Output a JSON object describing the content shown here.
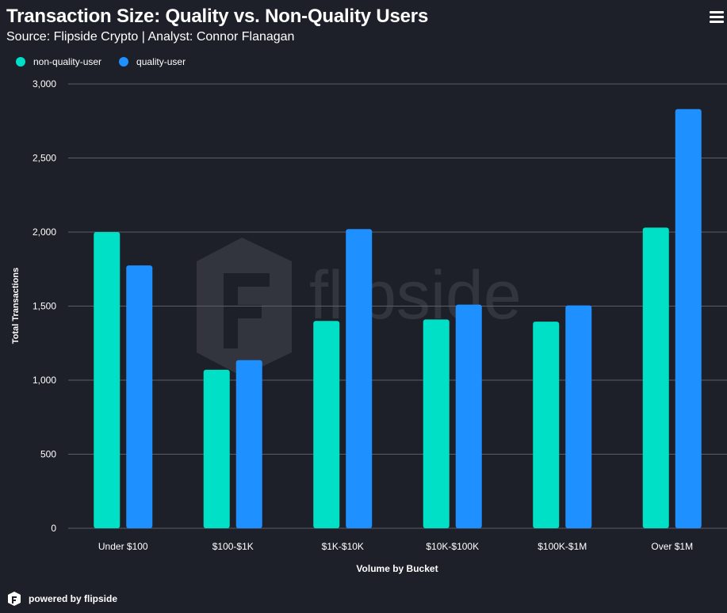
{
  "header": {
    "title": "Transaction Size: Quality vs. Non-Quality Users",
    "subtitle": "Source: Flipside Crypto | Analyst: Connor Flanagan"
  },
  "watermark": "flipside",
  "footer": {
    "label": "powered by flipside"
  },
  "colors": {
    "background": "#1e2029",
    "grid": "#5b5e68",
    "non_quality": "#00e0c6",
    "quality": "#1e90ff",
    "text": "#ffffff"
  },
  "chart_data": {
    "type": "bar",
    "title": "Transaction Size: Quality vs. Non-Quality Users",
    "xlabel": "Volume by Bucket",
    "ylabel": "Total Transactions",
    "ylim": [
      0,
      3000
    ],
    "yticks": [
      0,
      500,
      1000,
      1500,
      2000,
      2500,
      3000
    ],
    "ytick_labels": [
      "0",
      "500",
      "1,000",
      "1,500",
      "2,000",
      "2,500",
      "3,000"
    ],
    "legend_position": "top-left",
    "grid": true,
    "categories": [
      "Under $100",
      "$100-$1K",
      "$1K-$10K",
      "$10K-$100K",
      "$100K-$1M",
      "Over $1M"
    ],
    "series": [
      {
        "name": "non-quality-user",
        "color": "#00e0c6",
        "values": [
          2000,
          1070,
          1400,
          1410,
          1395,
          2030
        ]
      },
      {
        "name": "quality-user",
        "color": "#1e90ff",
        "values": [
          1775,
          1135,
          2020,
          1510,
          1505,
          2830
        ]
      }
    ]
  }
}
